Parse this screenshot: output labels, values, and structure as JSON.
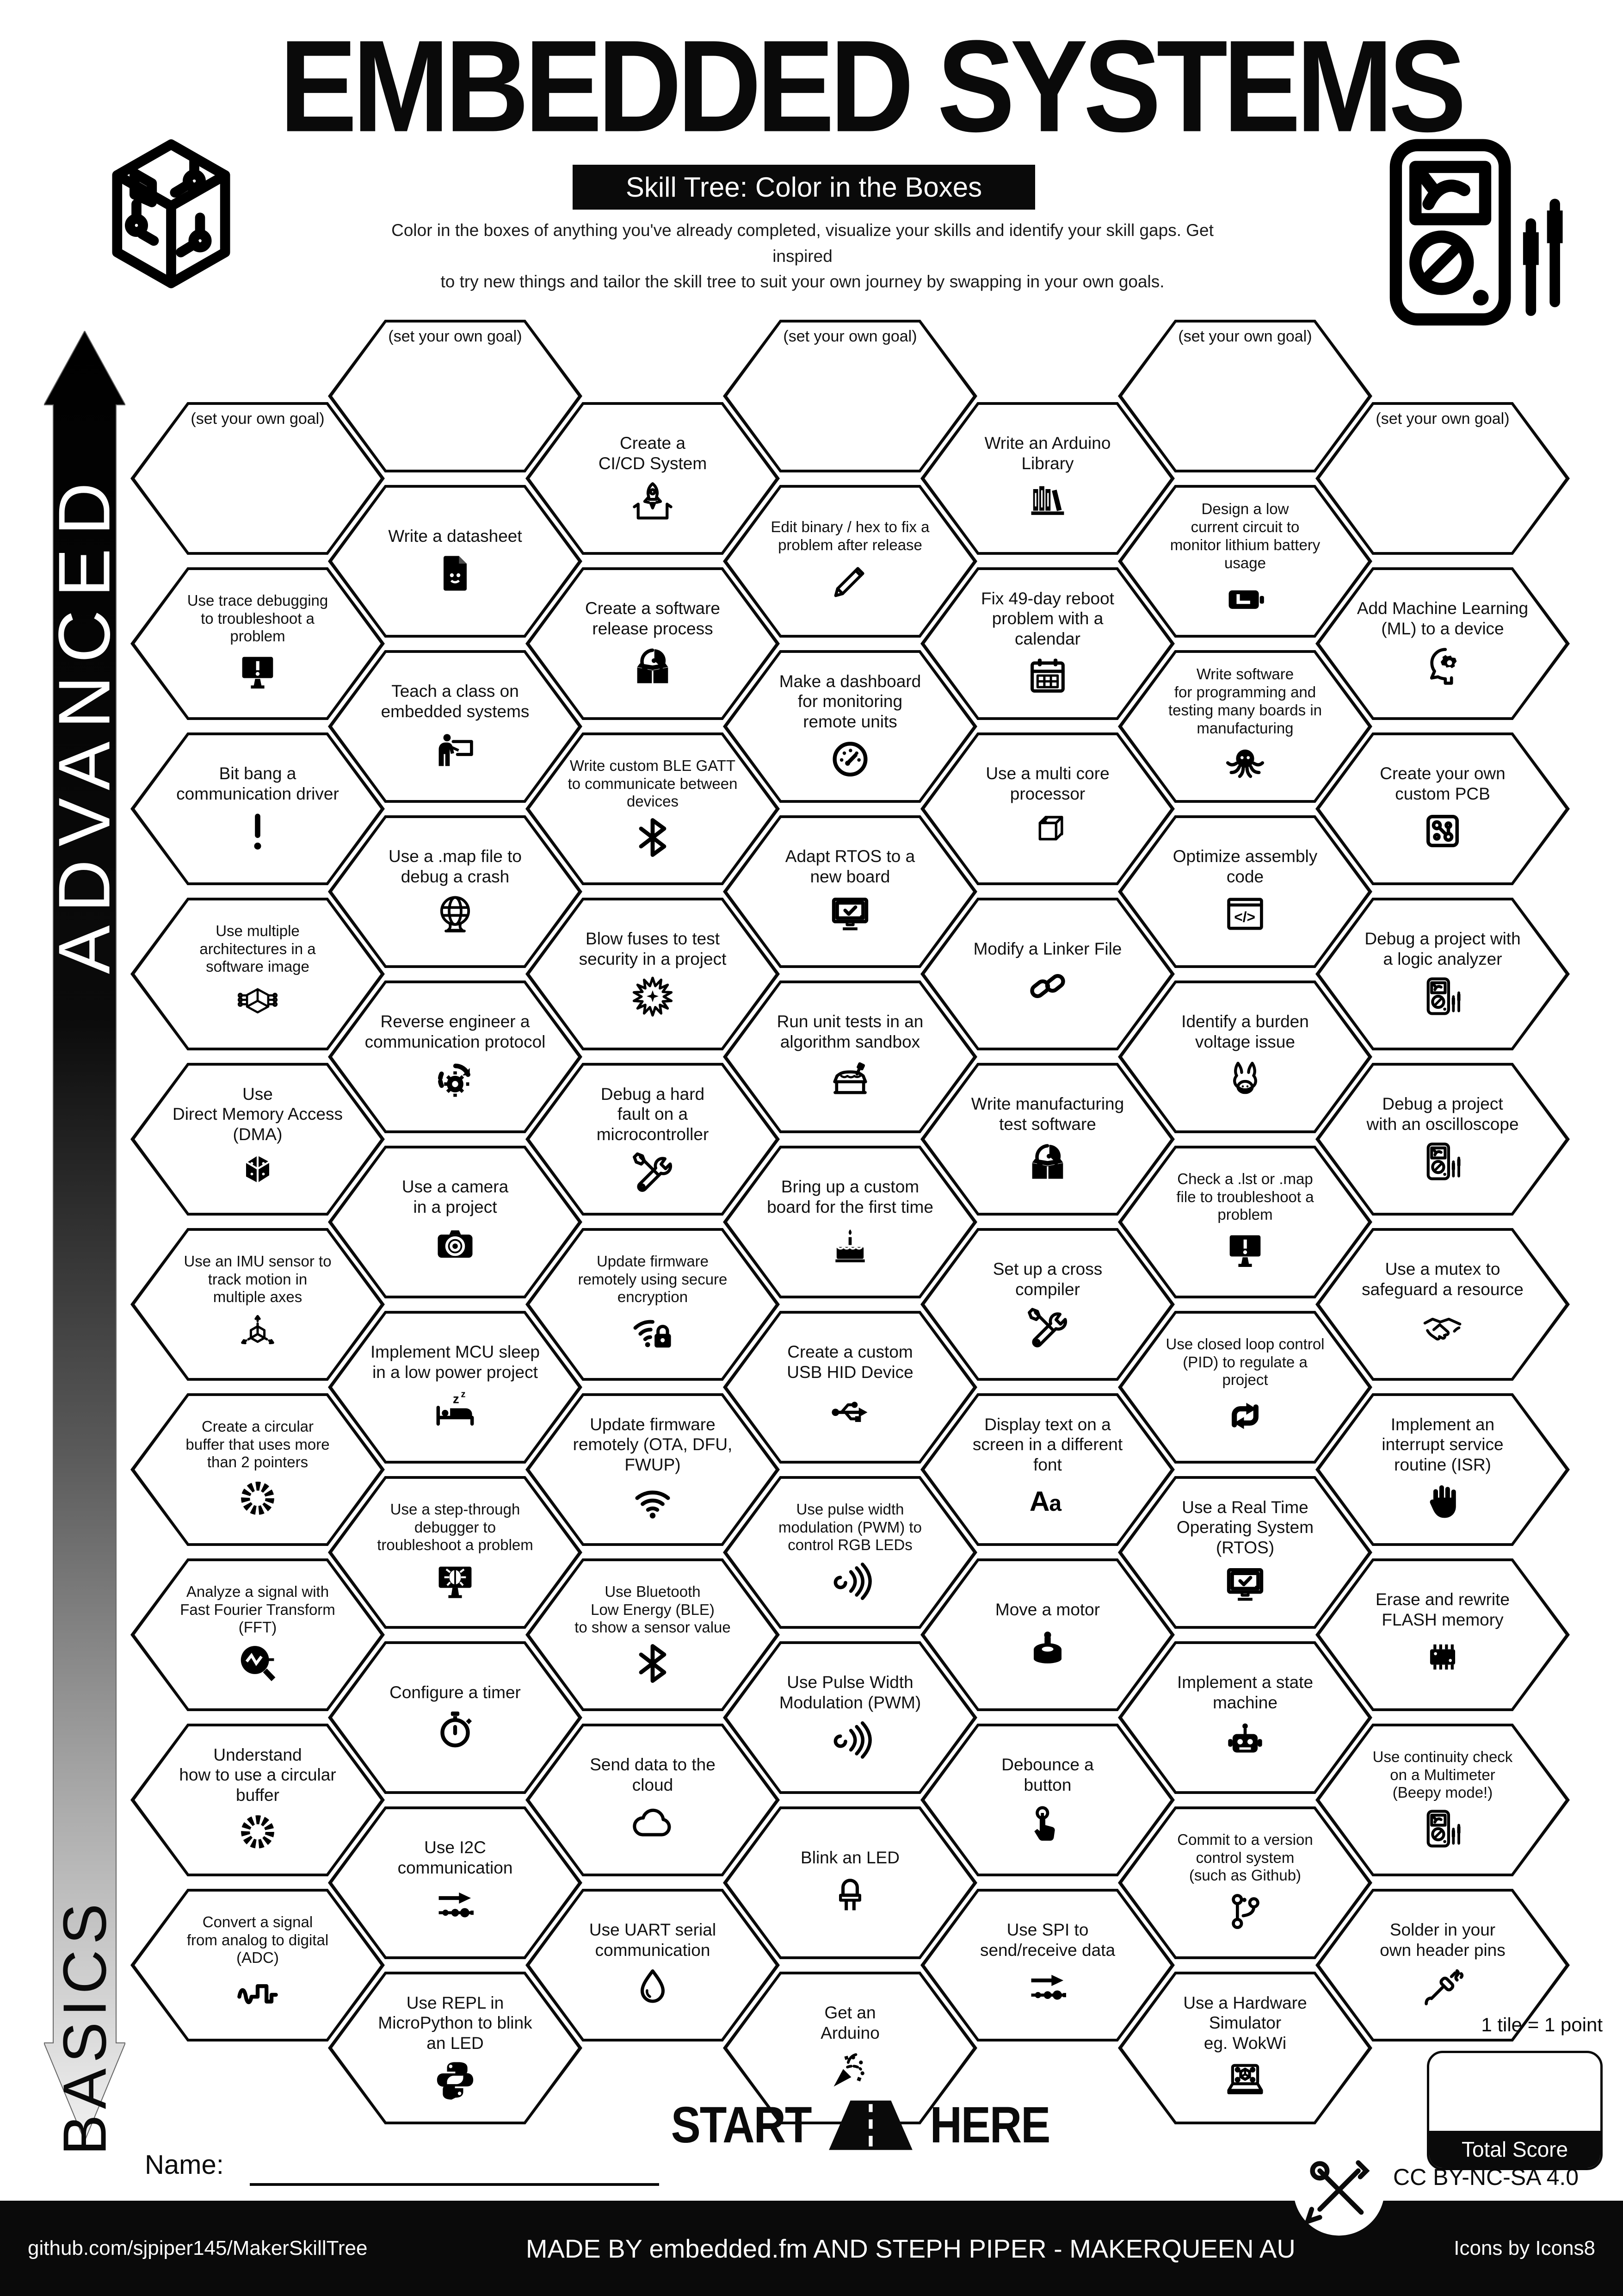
{
  "header": {
    "title": "EMBEDDED SYSTEMS",
    "subtitle": "Skill Tree: Color in the Boxes",
    "description_line1": "Color in the boxes of anything you've already completed, visualize your skills and identify your skill gaps.  Get inspired",
    "description_line2": "to try new things and tailor the skill tree to suit your own journey by swapping in your own goals.",
    "logo_icon": "circuit-cube",
    "corner_icon": "multimeter"
  },
  "axis": {
    "advanced_label": "ADVANCED",
    "basics_label": "BASICS"
  },
  "columns": [
    {
      "tiles": [
        {
          "label": "(set your own goal)",
          "icon": null
        },
        {
          "label": "Use trace debugging\nto troubleshoot a\nproblem",
          "icon": "monitor-warning"
        },
        {
          "label": "Bit bang a\ncommunication driver",
          "icon": "exclamation"
        },
        {
          "label": "Use multiple\narchitectures in a\nsoftware image",
          "icon": "cube-circuit"
        },
        {
          "label": "Use\nDirect Memory Access\n(DMA)",
          "icon": "memory-cube"
        },
        {
          "label": "Use an IMU sensor to\ntrack motion in\nmultiple axes",
          "icon": "axes-cube"
        },
        {
          "label": "Create a circular\nbuffer that uses more\nthan 2 pointers",
          "icon": "ring"
        },
        {
          "label": "Analyze a signal with\nFast Fourier Transform\n(FFT)",
          "icon": "magnifier-wave"
        },
        {
          "label": "Understand\nhow to use a circular\nbuffer",
          "icon": "ring"
        },
        {
          "label": "Convert a signal\nfrom analog to digital\n(ADC)",
          "icon": "wave-square"
        }
      ]
    },
    {
      "tiles": [
        {
          "label": "(set your own goal)",
          "icon": null
        },
        {
          "label": "Write a datasheet",
          "icon": "doc-smile"
        },
        {
          "label": "Teach a class on\nembedded systems",
          "icon": "teacher"
        },
        {
          "label": "Use a .map file to\ndebug a crash",
          "icon": "globe"
        },
        {
          "label": "Reverse engineer a\ncommunication protocol",
          "icon": "gear-cycle"
        },
        {
          "label": "Use a camera\nin a project",
          "icon": "camera"
        },
        {
          "label": "Implement MCU sleep\nin a low power project",
          "icon": "sleep-bed"
        },
        {
          "label": "Use a step-through\ndebugger to\ntroubleshoot a problem",
          "icon": "monitor-bug"
        },
        {
          "label": "Configure a timer",
          "icon": "stopwatch"
        },
        {
          "label": "Use I2C\ncommunication",
          "icon": "arrow-nodes"
        },
        {
          "label": "Use REPL in\nMicroPython to blink\nan LED",
          "icon": "python"
        }
      ]
    },
    {
      "tiles": [
        {
          "label": "Create a\nCI/CD System",
          "icon": "rocket-box"
        },
        {
          "label": "Create a software\nrelease process",
          "icon": "cd-box"
        },
        {
          "label": "Write custom BLE GATT\nto communicate between\ndevices",
          "icon": "bluetooth"
        },
        {
          "label": "Blow fuses to test\nsecurity in a project",
          "icon": "explosion"
        },
        {
          "label": "Debug a hard\nfault on a\nmicrocontroller",
          "icon": "tools"
        },
        {
          "label": "Update firmware\nremotely using secure\nencryption",
          "icon": "wifi-lock"
        },
        {
          "label": "Update firmware\nremotely (OTA, DFU,\nFWUP)",
          "icon": "wifi"
        },
        {
          "label": "Use Bluetooth\nLow Energy (BLE)\nto show a sensor value",
          "icon": "bluetooth"
        },
        {
          "label": "Send data to the\ncloud",
          "icon": "cloud"
        },
        {
          "label": "Use UART serial\ncommunication",
          "icon": "drop"
        }
      ]
    },
    {
      "tiles": [
        {
          "label": "(set your own goal)",
          "icon": null
        },
        {
          "label": "Edit binary / hex to fix a\nproblem after release",
          "icon": "pencil"
        },
        {
          "label": "Make a dashboard\nfor monitoring\nremote units",
          "icon": "gauge"
        },
        {
          "label": "Adapt RTOS to a\nnew board",
          "icon": "monitor-check"
        },
        {
          "label": "Run unit tests in an\nalgorithm sandbox",
          "icon": "sandbox"
        },
        {
          "label": "Bring up a custom\nboard for the first time",
          "icon": "cake"
        },
        {
          "label": "Create a custom\nUSB HID Device",
          "icon": "usb"
        },
        {
          "label": "Use pulse width\nmodulation (PWM) to\ncontrol RGB LEDs",
          "icon": "pwm"
        },
        {
          "label": "Use Pulse Width\nModulation (PWM)",
          "icon": "pwm"
        },
        {
          "label": "Blink an LED",
          "icon": "led"
        },
        {
          "label": "Get an\nArduino",
          "icon": "party"
        }
      ]
    },
    {
      "tiles": [
        {
          "label": "Write an Arduino\nLibrary",
          "icon": "books"
        },
        {
          "label": "Fix 49-day reboot\nproblem with a\ncalendar",
          "icon": "calendar"
        },
        {
          "label": "Use a multi core\nprocessor",
          "icon": "cube-dashed"
        },
        {
          "label": "Modify a Linker File",
          "icon": "chain"
        },
        {
          "label": "Write manufacturing\ntest software",
          "icon": "cd-box"
        },
        {
          "label": "Set up a cross\ncompiler",
          "icon": "tools"
        },
        {
          "label": "Display text on a\nscreen in a different\nfont",
          "icon": "font-aa"
        },
        {
          "label": "Move a motor",
          "icon": "motor"
        },
        {
          "label": "Debounce a\nbutton",
          "icon": "button-press"
        },
        {
          "label": "Use SPI to\nsend/receive data",
          "icon": "arrow-nodes"
        }
      ]
    },
    {
      "tiles": [
        {
          "label": "(set your own goal)",
          "icon": null
        },
        {
          "label": "Design a low\ncurrent circuit to\nmonitor lithium battery\nusage",
          "icon": "battery"
        },
        {
          "label": "Write software\nfor programming and\ntesting many boards in\nmanufacturing",
          "icon": "octopus"
        },
        {
          "label": "Optimize assembly\ncode",
          "icon": "code-window"
        },
        {
          "label": "Identify a burden\nvoltage issue",
          "icon": "donkey"
        },
        {
          "label": "Check a .lst or .map\nfile to troubleshoot a\nproblem",
          "icon": "monitor-warning"
        },
        {
          "label": "Use closed loop control\n(PID) to regulate a\nproject",
          "icon": "pid-loop"
        },
        {
          "label": "Use a Real Time\nOperating System\n(RTOS)",
          "icon": "monitor-check"
        },
        {
          "label": "Implement a state\nmachine",
          "icon": "robot"
        },
        {
          "label": "Commit to a version\ncontrol system\n(such as Github)",
          "icon": "git-branch"
        },
        {
          "label": "Use a Hardware\nSimulator\neg. WokWi",
          "icon": "laptop-sim"
        }
      ]
    },
    {
      "tiles": [
        {
          "label": "(set your own goal)",
          "icon": null
        },
        {
          "label": "Add Machine Learning\n(ML) to a device",
          "icon": "head-gear"
        },
        {
          "label": "Create your own\ncustom PCB",
          "icon": "pcb"
        },
        {
          "label": "Debug a project with\na logic analyzer",
          "icon": "multimeter"
        },
        {
          "label": "Debug a project\nwith an oscilloscope",
          "icon": "multimeter"
        },
        {
          "label": "Use a mutex to\nsafeguard a resource",
          "icon": "handshake"
        },
        {
          "label": "Implement an\ninterrupt service\nroutine (ISR)",
          "icon": "hand-stop"
        },
        {
          "label": "Erase and rewrite\nFLASH memory",
          "icon": "chip"
        },
        {
          "label": "Use continuity check\non a Multimeter\n(Beepy mode!)",
          "icon": "multimeter"
        },
        {
          "label": "Solder in your\nown header pins",
          "icon": "soldering-iron"
        }
      ]
    }
  ],
  "start_here": {
    "start": "START",
    "here": "HERE",
    "icon": "road"
  },
  "name_field": {
    "label": "Name:"
  },
  "scoring": {
    "tile_point_note": "1 tile = 1 point",
    "total_score_label": "Total Score"
  },
  "license": {
    "cc_label": "CC BY-NC-SA 4.0",
    "cc_icon": "maker-tools"
  },
  "footer": {
    "left": "github.com/sjpiper145/MakerSkillTree",
    "center": "MADE BY embedded.fm AND STEPH PIPER  -  MAKERQUEEN AU",
    "right": "Icons by Icons8"
  }
}
